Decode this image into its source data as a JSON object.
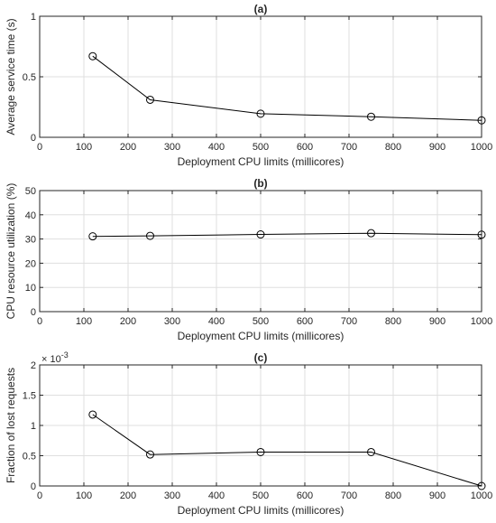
{
  "chart_data": [
    {
      "type": "line",
      "title": "(a)",
      "xlabel": "Deployment CPU limits (millicores)",
      "ylabel": "Average service time (s)",
      "xlim": [
        0,
        1000
      ],
      "ylim": [
        0,
        1
      ],
      "xticks": [
        0,
        100,
        200,
        300,
        400,
        500,
        600,
        700,
        800,
        900,
        1000
      ],
      "yticks": [
        0,
        0.5,
        1
      ],
      "grid": true,
      "marker": "circle",
      "series": [
        {
          "x": [
            120,
            250,
            500,
            750,
            1000
          ],
          "values": [
            0.67,
            0.31,
            0.195,
            0.17,
            0.14
          ]
        }
      ]
    },
    {
      "type": "line",
      "title": "(b)",
      "xlabel": "Deployment CPU limits (millicores)",
      "ylabel": "CPU resource utilization (%)",
      "xlim": [
        0,
        1000
      ],
      "ylim": [
        0,
        50
      ],
      "xticks": [
        0,
        100,
        200,
        300,
        400,
        500,
        600,
        700,
        800,
        900,
        1000
      ],
      "yticks": [
        0,
        10,
        20,
        30,
        40,
        50
      ],
      "grid": true,
      "marker": "circle",
      "series": [
        {
          "x": [
            120,
            250,
            500,
            750,
            1000
          ],
          "values": [
            31.1,
            31.3,
            31.9,
            32.4,
            31.8
          ]
        }
      ]
    },
    {
      "type": "line",
      "title": "(c)",
      "xlabel": "Deployment CPU limits (millicores)",
      "ylabel": "Fraction of lost requests",
      "xlim": [
        0,
        1000
      ],
      "ylim": [
        0,
        0.002
      ],
      "xticks": [
        0,
        100,
        200,
        300,
        400,
        500,
        600,
        700,
        800,
        900,
        1000
      ],
      "yticks": [
        0,
        0.0005,
        0.001,
        0.0015,
        0.002
      ],
      "ytick_labels": [
        "0",
        "0.5",
        "1",
        "1.5",
        "2"
      ],
      "y_exponent_base": "× 10",
      "y_exponent_power": "-3",
      "grid": true,
      "marker": "circle",
      "series": [
        {
          "x": [
            120,
            250,
            500,
            750,
            1000
          ],
          "values": [
            0.00118,
            0.00052,
            0.00056,
            0.00056,
            0.0
          ]
        }
      ]
    }
  ]
}
